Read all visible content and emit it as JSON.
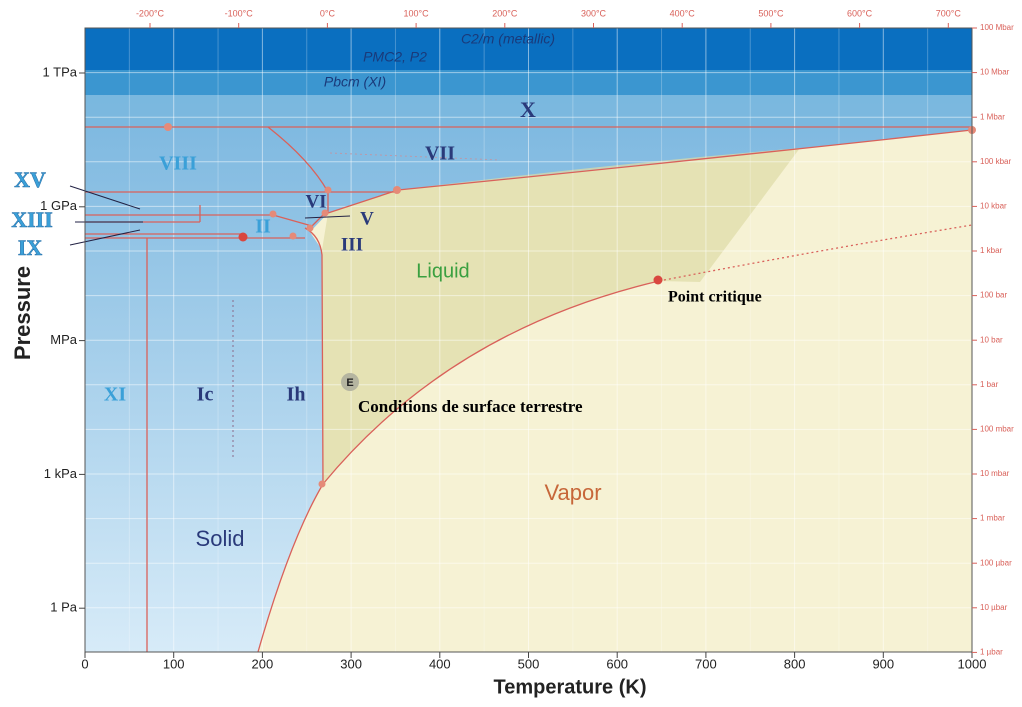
{
  "axes": {
    "x_title": "Temperature (K)",
    "y_title": "Pressure",
    "x_ticks": [
      "0",
      "100",
      "200",
      "300",
      "400",
      "500",
      "600",
      "700",
      "800",
      "900",
      "1000"
    ],
    "y_ticks_left": [
      "1 TPa",
      "1 GPa",
      "MPa",
      "1 kPa",
      "1 Pa"
    ],
    "top_ticks": [
      "-200°C",
      "-100°C",
      "0°C",
      "100°C",
      "200°C",
      "300°C",
      "400°C",
      "500°C",
      "600°C",
      "700°C"
    ],
    "right_ticks": [
      "100 Mbar",
      "10 Mbar",
      "1 Mbar",
      "100 kbar",
      "10 kbar",
      "1 kbar",
      "100 bar",
      "10 bar",
      "1 bar",
      "100 mbar",
      "10 mbar",
      "1 mbar",
      "100 µbar",
      "10 µbar",
      "1 µbar"
    ]
  },
  "phases": {
    "metallic": "C2/m (metallic)",
    "pmc2": "PMC2, P2",
    "pbcm": "Pbcm (XI)",
    "x": "X",
    "vii": "VII",
    "viii": "VIII",
    "xv": "XV",
    "xiii": "XIII",
    "ix": "IX",
    "vi": "VI",
    "v": "V",
    "ii": "II",
    "iii": "III",
    "liquid": "Liquid",
    "xi": "XI",
    "ic": "Ic",
    "ih": "Ih",
    "solid": "Solid",
    "vapor": "Vapor"
  },
  "annotations": {
    "critical": "Point critique",
    "earth_marker": "E",
    "earth": "Conditions de surface terrestre"
  }
}
